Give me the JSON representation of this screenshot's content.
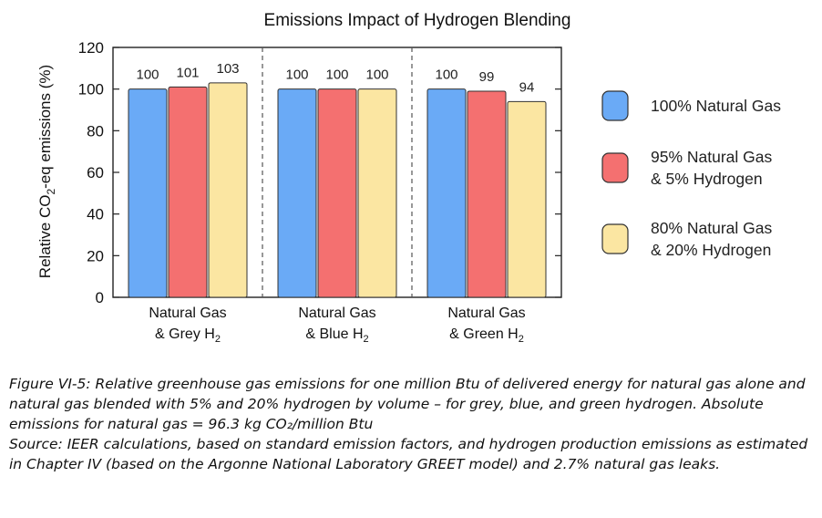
{
  "chart_data": {
    "type": "bar",
    "title": "Emissions Impact of Hydrogen Blending",
    "ylabel_parts": [
      "Relative CO",
      "2",
      "-eq emissions (%)"
    ],
    "ylim": [
      0,
      120
    ],
    "yticks": [
      0,
      20,
      40,
      60,
      80,
      100,
      120
    ],
    "categories": [
      {
        "line1": "Natural Gas",
        "line2": "& Grey H",
        "sub": "2"
      },
      {
        "line1": "Natural Gas",
        "line2": "& Blue H",
        "sub": "2"
      },
      {
        "line1": "Natural Gas",
        "line2": "& Green H",
        "sub": "2"
      }
    ],
    "series": [
      {
        "name_lines": [
          "100% Natural Gas"
        ],
        "color": "#6aaaf6",
        "values": [
          100,
          100,
          100
        ]
      },
      {
        "name_lines": [
          "95% Natural Gas",
          "& 5% Hydrogen"
        ],
        "color": "#f47070",
        "values": [
          101,
          100,
          99
        ]
      },
      {
        "name_lines": [
          "80% Natural Gas",
          "& 20% Hydrogen"
        ],
        "color": "#fbe6a2",
        "values": [
          103,
          100,
          94
        ]
      }
    ],
    "grid": false,
    "legend": "right",
    "group_separators": "dashed"
  },
  "caption": {
    "figure_text": "Figure VI-5: Relative greenhouse gas emissions for one million Btu of delivered energy for natural gas alone and natural gas blended with 5% and 20% hydrogen by volume – for grey, blue, and green hydrogen. Absolute emissions for natural gas = 96.3 kg CO₂/million Btu",
    "source_text": "Source: IEER calculations, based on standard emission factors, and hydrogen production emissions as estimated in Chapter IV (based on the Argonne National Laboratory GREET model) and 2.7% natural gas leaks."
  }
}
